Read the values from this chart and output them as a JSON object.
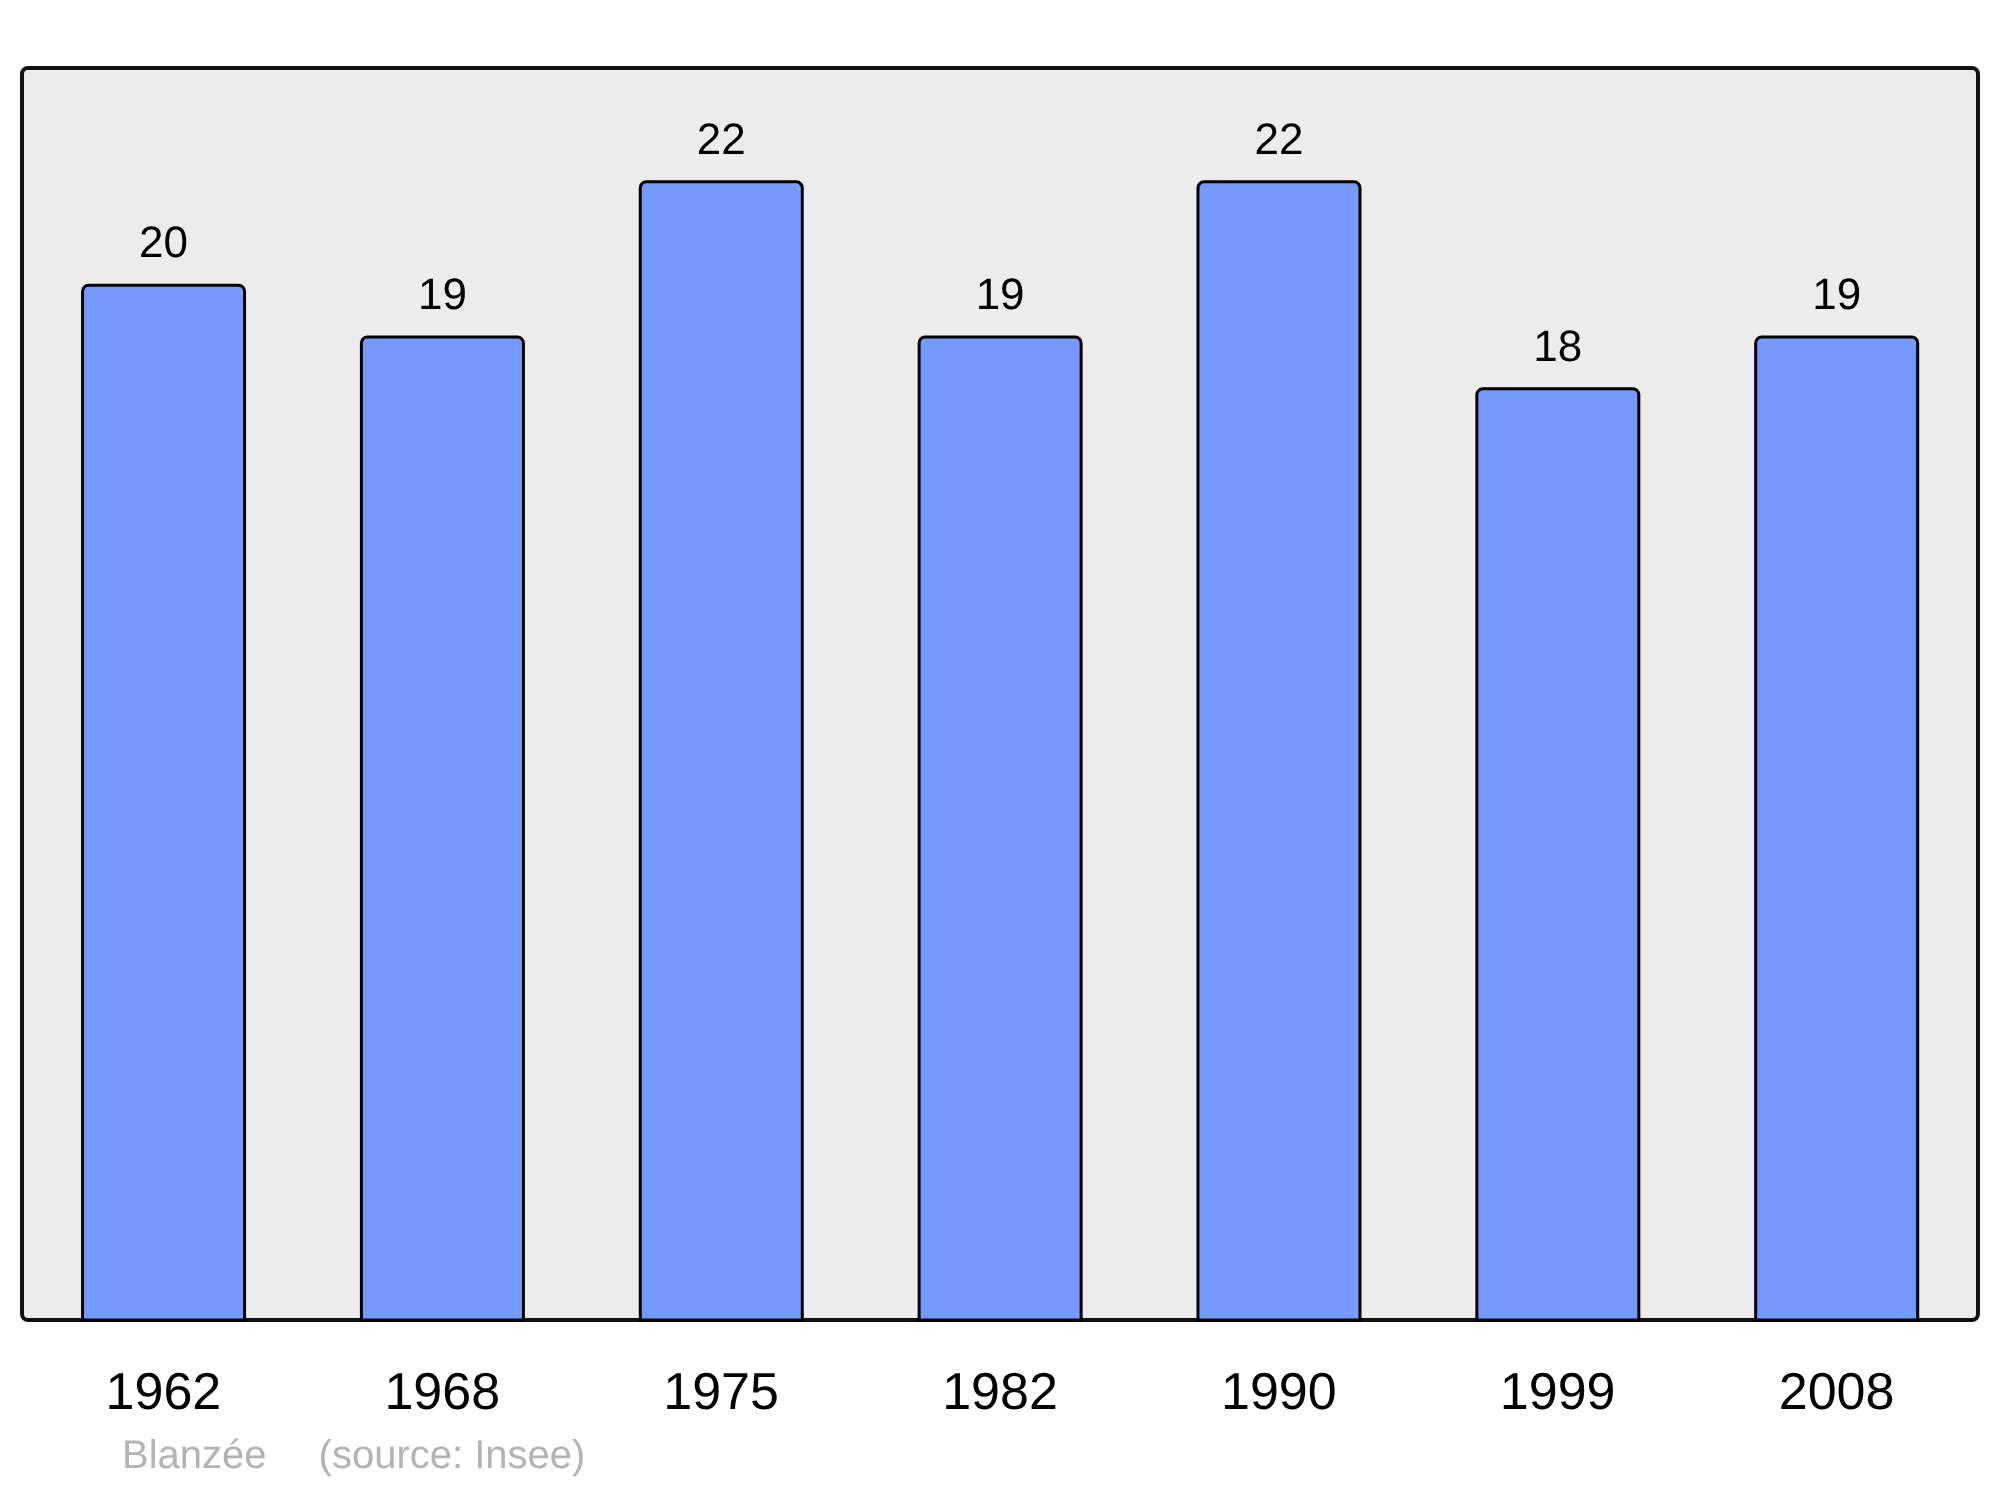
{
  "chart_data": {
    "type": "bar",
    "categories": [
      "1962",
      "1968",
      "1975",
      "1982",
      "1990",
      "1999",
      "2008"
    ],
    "values": [
      20,
      19,
      22,
      19,
      22,
      18,
      19
    ],
    "color": "#7499ff",
    "data_labels": true,
    "annotations": [
      "Blanzée",
      "(source: Insee)"
    ]
  }
}
